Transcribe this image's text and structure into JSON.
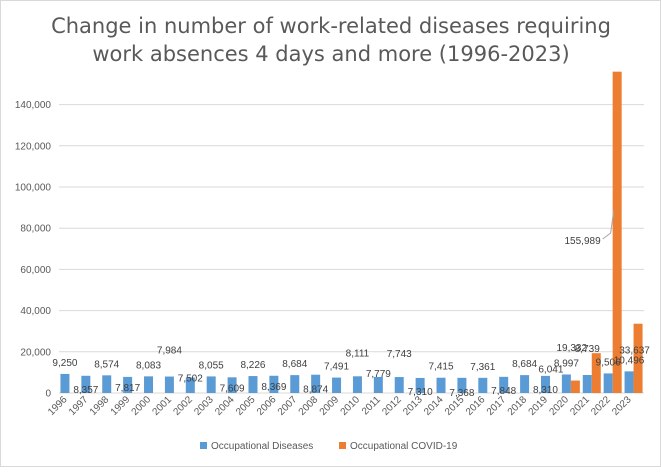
{
  "chart_data": {
    "type": "bar",
    "title_line1": "Change in number of work-related diseases requiring",
    "title_line2": "work absences 4 days and more (1996-2023)",
    "categories": [
      "1996",
      "1997",
      "1998",
      "1999",
      "2000",
      "2001",
      "2002",
      "2003",
      "2004",
      "2005",
      "2006",
      "2007",
      "2008",
      "2009",
      "2010",
      "2011",
      "2012",
      "2013",
      "2014",
      "2015",
      "2016",
      "2017",
      "2018",
      "2019",
      "2020",
      "2021",
      "2022",
      "2023"
    ],
    "series": [
      {
        "name": "Occupational Diseases",
        "color": "#5b9bd5",
        "values": [
          9250,
          8357,
          8574,
          7817,
          8083,
          7984,
          7502,
          8055,
          7609,
          8226,
          8369,
          8684,
          8874,
          7491,
          8111,
          7779,
          7743,
          7310,
          7415,
          7368,
          7361,
          7848,
          8684,
          8310,
          8997,
          8739,
          9506,
          10496
        ],
        "labels": [
          "9,250",
          "8,357",
          "8,574",
          "7,817",
          "8,083",
          "7,984",
          "7,502",
          "8,055",
          "7,609",
          "8,226",
          "8,369",
          "8,684",
          "8,874",
          "7,491",
          "8,111",
          "7,779",
          "7,743",
          "7,310",
          "7,415",
          "7,368",
          "7,361",
          "7,848",
          "8,684",
          "8,310",
          "8,997",
          "8,739",
          "9,506",
          "10,496"
        ]
      },
      {
        "name": "Occupational COVID-19",
        "color": "#ed7d31",
        "values": [
          null,
          null,
          null,
          null,
          null,
          null,
          null,
          null,
          null,
          null,
          null,
          null,
          null,
          null,
          null,
          null,
          null,
          null,
          null,
          null,
          null,
          null,
          null,
          null,
          6041,
          19332,
          155989,
          33637
        ],
        "labels": [
          "",
          "",
          "",
          "",
          "",
          "",
          "",
          "",
          "",
          "",
          "",
          "",
          "",
          "",
          "",
          "",
          "",
          "",
          "",
          "",
          "",
          "",
          "",
          "",
          "6,041",
          "19,332",
          "155,989",
          "33,637"
        ]
      }
    ],
    "yticks": [
      "0",
      "20,000",
      "40,000",
      "60,000",
      "80,000",
      "100,000",
      "120,000",
      "140,000"
    ],
    "ylim": [
      0,
      150000
    ],
    "legend": "bottom",
    "grid": true
  }
}
